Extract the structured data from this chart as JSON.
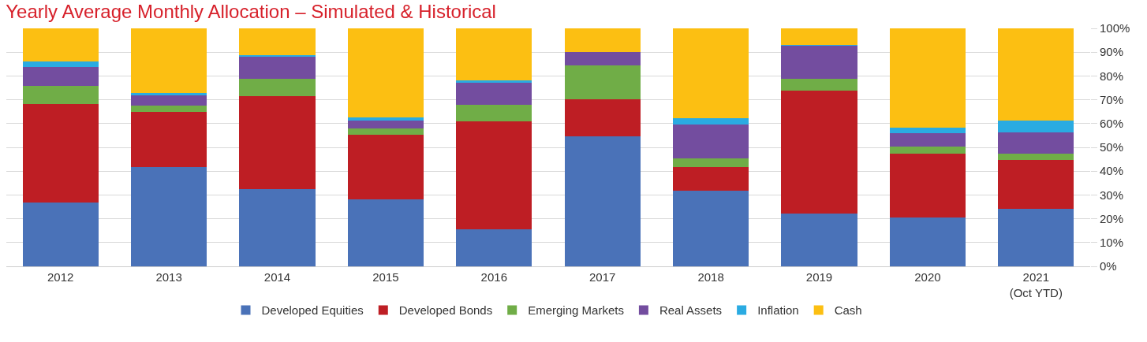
{
  "chart_data": {
    "type": "bar",
    "stacked": true,
    "title": "Yearly Average Monthly Allocation – Simulated & Historical",
    "categories": [
      "2012",
      "2013",
      "2014",
      "2015",
      "2016",
      "2017",
      "2018",
      "2019",
      "2020",
      "2021\n(Oct YTD)"
    ],
    "series": [
      {
        "name": "Developed Equities",
        "color": "#4a72b8",
        "values": [
          26.7,
          41.8,
          32.3,
          28.2,
          15.7,
          54.6,
          31.9,
          22.1,
          20.6,
          24.1
        ]
      },
      {
        "name": "Developed Bonds",
        "color": "#be1e24",
        "values": [
          41.5,
          23.2,
          39.2,
          27.0,
          45.1,
          15.5,
          9.8,
          51.7,
          26.8,
          20.7
        ]
      },
      {
        "name": "Emerging Markets",
        "color": "#70ad47",
        "values": [
          7.5,
          2.7,
          7.4,
          2.7,
          7.2,
          14.4,
          3.6,
          5.1,
          3.0,
          2.5
        ]
      },
      {
        "name": "Real Assets",
        "color": "#734d9f",
        "values": [
          8.0,
          4.1,
          9.5,
          3.5,
          9.2,
          5.6,
          14.4,
          13.9,
          5.5,
          8.9
        ]
      },
      {
        "name": "Inflation",
        "color": "#2aabe2",
        "values": [
          2.4,
          0.9,
          0.3,
          1.2,
          1.1,
          0,
          2.6,
          0.3,
          2.4,
          5.1
        ]
      },
      {
        "name": "Cash",
        "color": "#fcbf12",
        "values": [
          13.9,
          27.3,
          11.3,
          37.4,
          21.7,
          9.9,
          37.7,
          6.9,
          41.7,
          38.7
        ]
      }
    ],
    "ylim": [
      0,
      100
    ],
    "yticks": [
      {
        "value": 0,
        "label": "0%"
      },
      {
        "value": 10,
        "label": "10%"
      },
      {
        "value": 20,
        "label": "20%"
      },
      {
        "value": 30,
        "label": "30%"
      },
      {
        "value": 40,
        "label": "40%"
      },
      {
        "value": 50,
        "label": "50%"
      },
      {
        "value": 60,
        "label": "60%"
      },
      {
        "value": 70,
        "label": "70%"
      },
      {
        "value": 80,
        "label": "80%"
      },
      {
        "value": 90,
        "label": "90%"
      },
      {
        "value": 100,
        "label": "100%"
      }
    ],
    "grid": "y",
    "legend": "bottom"
  }
}
